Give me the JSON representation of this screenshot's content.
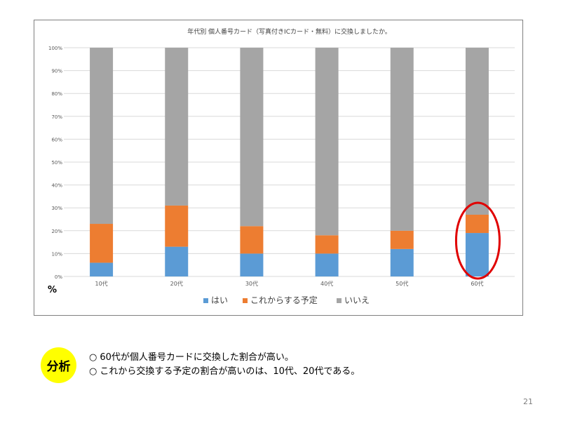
{
  "chart_data": {
    "type": "bar",
    "stacked": true,
    "title": "年代別 個人番号カード（写真付きICカード・無料）に交換しましたか。",
    "unit_label": "%",
    "categories": [
      "10代",
      "20代",
      "30代",
      "40代",
      "50代",
      "60代"
    ],
    "ylim": [
      0,
      100
    ],
    "yticks": [
      "0%",
      "10%",
      "20%",
      "30%",
      "40%",
      "50%",
      "60%",
      "70%",
      "80%",
      "90%",
      "100%"
    ],
    "grid": true,
    "legend_position": "bottom",
    "series": [
      {
        "name": "はい",
        "color": "#5b9bd5",
        "values": [
          6,
          13,
          10,
          10,
          12,
          19
        ]
      },
      {
        "name": "これからする予定",
        "color": "#ed7d31",
        "values": [
          17,
          18,
          12,
          8,
          8,
          8
        ]
      },
      {
        "name": "いいえ",
        "color": "#a5a5a5",
        "values": [
          77,
          69,
          78,
          82,
          80,
          73
        ]
      }
    ],
    "highlight": {
      "category": "60代",
      "color": "#e00000"
    }
  },
  "analysis": {
    "badge": "分析",
    "marker": "○",
    "lines": [
      "60代が個人番号カードに交換した割合が高い。",
      "これから交換する予定の割合が高いのは、10代、20代である。"
    ]
  },
  "page_number": "21"
}
